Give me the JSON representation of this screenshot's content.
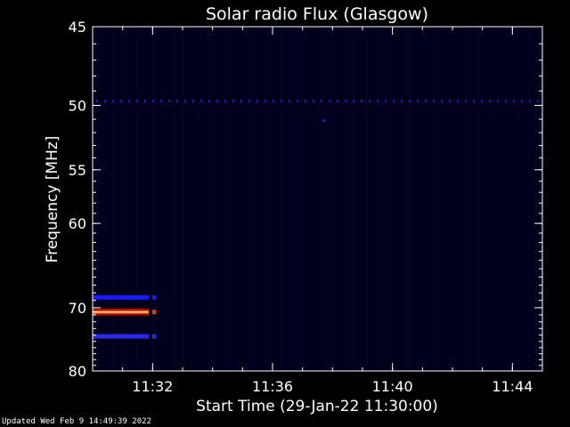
{
  "chart_data": {
    "type": "heatmap",
    "title": "Solar radio Flux (Glasgow)",
    "xlabel": "Start Time (29-Jan-22 11:30:00)",
    "ylabel": "Frequency [MHz]",
    "x_ticks": [
      "11:32",
      "11:36",
      "11:40",
      "11:44"
    ],
    "y_ticks": [
      "45",
      "50",
      "55",
      "60",
      "70",
      "80"
    ],
    "y_scale": "reciprocal",
    "ylim": [
      45,
      80
    ],
    "colors": {
      "background": "#000000",
      "plot_background": "#00001a",
      "low": "#0000ff",
      "high": "#ff2000",
      "core": "#ffe0a0"
    },
    "bands": [
      {
        "freq": 68.6,
        "start": "11:30:00",
        "end": "11:32:10",
        "color": "#1a1aff"
      },
      {
        "freq": 70.6,
        "start": "11:30:00",
        "end": "11:32:10",
        "color": "#ff3300"
      },
      {
        "freq": 74.2,
        "start": "11:30:00",
        "end": "11:32:10",
        "color": "#2a2aee"
      },
      {
        "freq": 49.7,
        "start": "11:30:00",
        "end": "11:45:00",
        "color": "#1a1acc"
      }
    ]
  },
  "footer": "Updated Wed Feb  9 14:49:39 2022"
}
